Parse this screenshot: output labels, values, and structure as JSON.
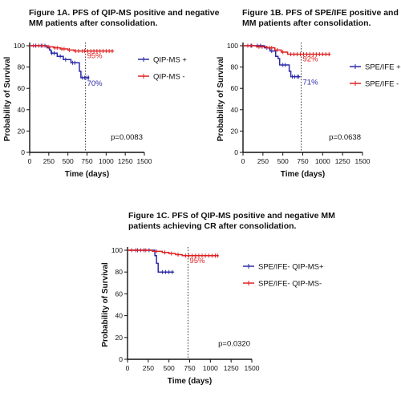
{
  "chart_data": [
    {
      "type": "line",
      "panel": "A",
      "title_lines": [
        "Figure 1A. PFS of QIP-MS positive and negative",
        "MM patients after consolidation."
      ],
      "xlabel": "Time (days)",
      "ylabel": "Probability of Survival",
      "xlim": [
        0,
        1500
      ],
      "ylim": [
        0,
        100
      ],
      "xticks": [
        0,
        250,
        500,
        750,
        1000,
        1250,
        1500
      ],
      "yticks": [
        0,
        20,
        40,
        60,
        80,
        100
      ],
      "legend_position": "right",
      "pvalue_text": "p=0.0083",
      "reference_x": 730,
      "series": [
        {
          "name": "QIP-MS +",
          "color": "#2a2aa8",
          "end_label": "70%",
          "points": [
            [
              0,
              100
            ],
            [
              180,
              100
            ],
            [
              230,
              98
            ],
            [
              260,
              96
            ],
            [
              280,
              93
            ],
            [
              340,
              93
            ],
            [
              360,
              90
            ],
            [
              420,
              90
            ],
            [
              440,
              87
            ],
            [
              520,
              87
            ],
            [
              540,
              84
            ],
            [
              620,
              84
            ],
            [
              650,
              76
            ],
            [
              670,
              70
            ],
            [
              780,
              70
            ]
          ],
          "censors": [
            80,
            150,
            200,
            290,
            320,
            400,
            470,
            560,
            590,
            690,
            720,
            750,
            770
          ]
        },
        {
          "name": "QIP-MS -",
          "color": "#e02020",
          "end_label": "95%",
          "points": [
            [
              0,
              100
            ],
            [
              200,
              100
            ],
            [
              220,
              99
            ],
            [
              290,
              99
            ],
            [
              310,
              98
            ],
            [
              380,
              98
            ],
            [
              400,
              97
            ],
            [
              480,
              97
            ],
            [
              500,
              96
            ],
            [
              560,
              96
            ],
            [
              580,
              95
            ],
            [
              1100,
              95
            ]
          ],
          "censors": [
            50,
            120,
            170,
            250,
            330,
            360,
            420,
            450,
            520,
            600,
            640,
            690,
            720,
            760,
            800,
            840,
            880,
            920,
            960,
            1000,
            1040,
            1080
          ]
        }
      ]
    },
    {
      "type": "line",
      "panel": "B",
      "title_lines": [
        "Figure 1B. PFS of SPE/IFE positive and negative",
        "MM patients after consolidation."
      ],
      "xlabel": "Time (days)",
      "ylabel": "Probability of Survival",
      "xlim": [
        0,
        1500
      ],
      "ylim": [
        0,
        100
      ],
      "xticks": [
        0,
        250,
        500,
        750,
        1000,
        1250,
        1500
      ],
      "yticks": [
        0,
        20,
        40,
        60,
        80,
        100
      ],
      "legend_position": "right",
      "pvalue_text": "p=0.0638",
      "reference_x": 730,
      "series": [
        {
          "name": "SPE/IFE +",
          "color": "#2a2aa8",
          "end_label": "71%",
          "points": [
            [
              0,
              100
            ],
            [
              250,
              100
            ],
            [
              270,
              98
            ],
            [
              320,
              98
            ],
            [
              340,
              95
            ],
            [
              390,
              95
            ],
            [
              410,
              90
            ],
            [
              440,
              88
            ],
            [
              460,
              82
            ],
            [
              560,
              82
            ],
            [
              580,
              76
            ],
            [
              600,
              71
            ],
            [
              720,
              71
            ]
          ],
          "censors": [
            100,
            180,
            220,
            300,
            360,
            500,
            530,
            620,
            650,
            680,
            700
          ]
        },
        {
          "name": "SPE/IFE -",
          "color": "#e02020",
          "end_label": "92%",
          "points": [
            [
              0,
              100
            ],
            [
              150,
              100
            ],
            [
              170,
              99
            ],
            [
              280,
              99
            ],
            [
              300,
              98
            ],
            [
              380,
              98
            ],
            [
              400,
              96
            ],
            [
              460,
              96
            ],
            [
              480,
              94
            ],
            [
              540,
              94
            ],
            [
              560,
              92
            ],
            [
              1100,
              92
            ]
          ],
          "censors": [
            60,
            110,
            200,
            240,
            330,
            360,
            430,
            500,
            600,
            640,
            680,
            720,
            760,
            800,
            840,
            880,
            920,
            960,
            1000,
            1040,
            1080
          ]
        }
      ]
    },
    {
      "type": "line",
      "panel": "C",
      "title_lines": [
        "Figure 1C. PFS of QIP-MS positive and negative MM",
        "patients achieving CR after consolidation."
      ],
      "xlabel": "Time (days)",
      "ylabel": "Probability of Survival",
      "xlim": [
        0,
        1500
      ],
      "ylim": [
        0,
        100
      ],
      "xticks": [
        0,
        250,
        500,
        750,
        1000,
        1250,
        1500
      ],
      "yticks": [
        0,
        20,
        40,
        60,
        80,
        100
      ],
      "legend_position": "right",
      "pvalue_text": "p=0.0320",
      "reference_x": 730,
      "series": [
        {
          "name": "SPE/IFE- QIP-MS+",
          "color": "#2a2aa8",
          "end_label": "",
          "points": [
            [
              0,
              100
            ],
            [
              300,
              100
            ],
            [
              330,
              95
            ],
            [
              350,
              88
            ],
            [
              370,
              80
            ],
            [
              560,
              80
            ]
          ],
          "censors": [
            120,
            200,
            260,
            420,
            460,
            500,
            540
          ]
        },
        {
          "name": "SPE/IFE- QIP-MS-",
          "color": "#e02020",
          "end_label": "95%",
          "points": [
            [
              0,
              100
            ],
            [
              280,
              100
            ],
            [
              300,
              99
            ],
            [
              400,
              99
            ],
            [
              420,
              98
            ],
            [
              480,
              98
            ],
            [
              500,
              97
            ],
            [
              560,
              97
            ],
            [
              580,
              96
            ],
            [
              640,
              96
            ],
            [
              660,
              95
            ],
            [
              1100,
              95
            ]
          ],
          "censors": [
            50,
            100,
            160,
            220,
            350,
            450,
            530,
            610,
            700,
            740,
            780,
            820,
            860,
            900,
            940,
            980,
            1020,
            1060,
            1090
          ]
        }
      ]
    }
  ]
}
